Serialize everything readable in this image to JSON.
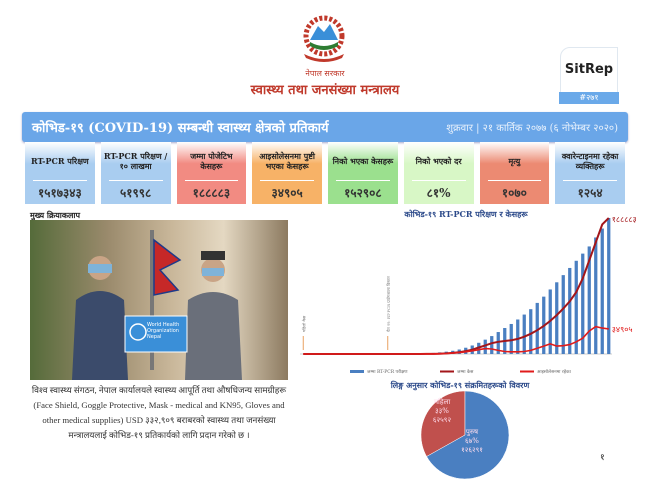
{
  "header": {
    "gov_label": "नेपाल सरकार",
    "ministry": "स्वास्थ्य तथा जनसंख्या मन्त्रालय",
    "badge_title": "SitRep",
    "badge_number": "#२७१"
  },
  "banner": {
    "title": "कोभिड-१९ (COVID-19) सम्बन्धी स्वास्थ्य क्षेत्रको प्रतिकार्य",
    "date": "शुक्रवार | २१ कार्तिक २०७७ (६ नोभेम्बर २०२०)"
  },
  "stats": [
    {
      "label": "RT-PCR परिक्षण",
      "value": "१५१७३४३",
      "color": "#a9cdf0"
    },
    {
      "label": "RT-PCR परिक्षण /१० लाखमा",
      "value": "५१९९८",
      "color": "#a9cdf0"
    },
    {
      "label": "जम्मा पोजेटिभ केसहरू",
      "value": "१८८८८३",
      "color": "#f28b82"
    },
    {
      "label": "आइसोलेसनमा पुष्टी भएका केसहरू",
      "value": "३४९०५",
      "color": "#f7b267"
    },
    {
      "label": "निको भएका केसहरू",
      "value": "१५२९०८",
      "color": "#9be08e"
    },
    {
      "label": "निको भएको दर",
      "value": "८१%",
      "color": "#d8f7c6"
    },
    {
      "label": "मृत्यु",
      "value": "१०७०",
      "color": "#ec8a72"
    },
    {
      "label": "क्वारेन्टाइनमा रहेका व्यक्तिहरू",
      "value": "१२५४",
      "color": "#a9cdf0"
    }
  ],
  "activity": {
    "heading": "मुख्य क्रियाकलाप",
    "who_sign": "World Health Organization Nepal",
    "caption": "विश्व स्वास्थ्य संगठन, नेपाल कार्यालयले स्वास्थ्य आपूर्ति तथा औषधिजन्य सामग्रीहरू (Face Shield, Goggle Protective, Mask - medical and KN95, Gloves and other medical supplies) USD ३३२,९०९ बराबरको स्वास्थ्य तथा जनसंख्या मन्त्रालयलाई कोभिड-१९ प्रतिकार्यको लागि प्रदान गरेको छ ।"
  },
  "page_number": "१",
  "chart_data": [
    {
      "type": "bar+line",
      "title": "कोभिड-१९ RT-PCR परिक्षण र केसहरू",
      "series": [
        {
          "name": "जम्मा RT-PCR परीक्षण",
          "type": "bar",
          "color": "#4a7fc1",
          "values": [
            0,
            0,
            0,
            0,
            0,
            0,
            0,
            0,
            0,
            0,
            0,
            0,
            0,
            0,
            500,
            1000,
            2000,
            3000,
            5000,
            8000,
            12000,
            18000,
            26000,
            36000,
            50000,
            70000,
            95000,
            125000,
            160000,
            200000,
            245000,
            290000,
            335000,
            385000,
            440000,
            500000,
            570000,
            640000,
            720000,
            800000,
            880000,
            960000,
            1040000,
            1120000,
            1200000,
            1300000,
            1400000,
            1517343
          ]
        },
        {
          "name": "जम्मा केस",
          "type": "line",
          "color": "#a3161a",
          "values": [
            0,
            0,
            0,
            0,
            0,
            0,
            0,
            0,
            0,
            0,
            0,
            0,
            0,
            0,
            0,
            0,
            0,
            0,
            50,
            100,
            200,
            400,
            800,
            1500,
            2500,
            4000,
            6000,
            9000,
            12000,
            15000,
            17000,
            18000,
            19000,
            21000,
            24000,
            28000,
            33000,
            39000,
            46000,
            54000,
            63000,
            73000,
            86000,
            105000,
            130000,
            155000,
            180000,
            188883
          ]
        },
        {
          "name": "आइसोलेसनमा रहेका",
          "type": "line",
          "color": "#e01b1b",
          "values": [
            0,
            0,
            0,
            0,
            0,
            0,
            0,
            0,
            0,
            0,
            0,
            0,
            0,
            0,
            0,
            0,
            0,
            0,
            50,
            100,
            200,
            400,
            700,
            1200,
            2000,
            3000,
            4500,
            6000,
            7500,
            7000,
            5000,
            3500,
            3000,
            3000,
            3500,
            5000,
            8000,
            11000,
            14000,
            11000,
            11500,
            13000,
            17000,
            22000,
            32000,
            38000,
            36000,
            34905
          ]
        }
      ],
      "annotations": [
        "पहिलो केस",
        "चैत ११: RT-PCR प्रयोगशाला विस्तार"
      ],
      "end_labels": [
        "१८८८८३",
        "३४९०५"
      ],
      "legend": "bottom",
      "grid": false
    },
    {
      "type": "pie",
      "title": "लिङ्ग अनुसार कोभिड-१९ संक्रमितहरूको विवरण",
      "slices": [
        {
          "label": "पुरुष",
          "percent": "६७%",
          "value": "१२६२९१",
          "count": 126291,
          "color": "#4a7fc1"
        },
        {
          "label": "महिला",
          "percent": "३३%",
          "value": "६२५९२",
          "count": 62592,
          "color": "#c0504d"
        }
      ]
    }
  ]
}
